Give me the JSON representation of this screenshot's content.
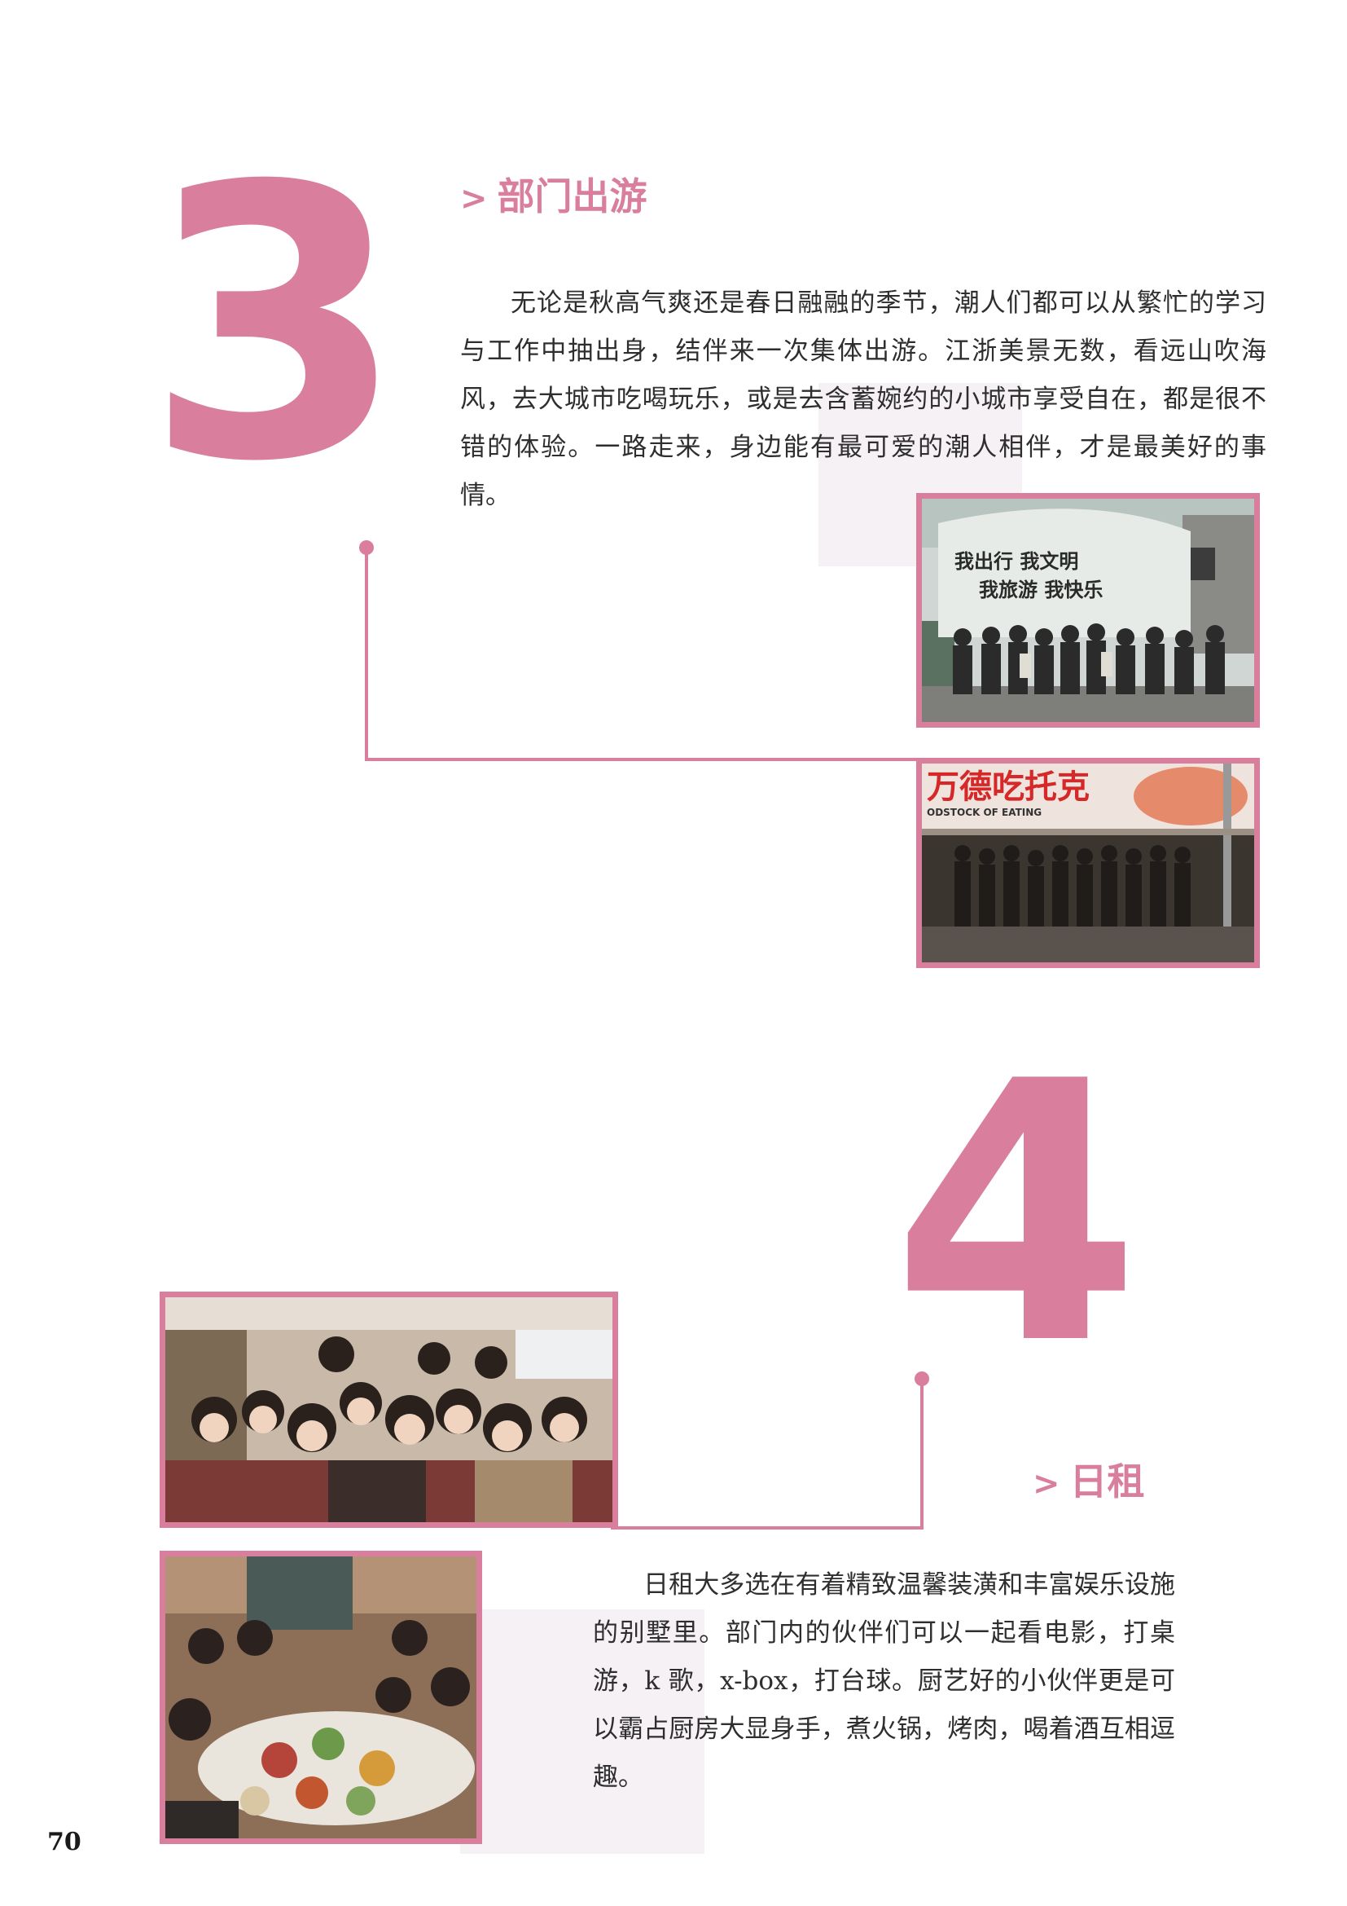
{
  "section3": {
    "number": "3",
    "heading_prefix": ">",
    "heading": "部门出游",
    "body": "无论是秋高气爽还是春日融融的季节，潮人们都可以从繁忙的学习与工作中抽出身，结伴来一次集体出游。江浙美景无数，看远山吹海风，去大城市吃喝玩乐，或是去含蓄婉约的小城市享受自在，都是很不错的体验。一路走来，身边能有最可爱的潮人相伴，才是最美好的事情。",
    "photo1_sign_line1": "我出行 我文明",
    "photo1_sign_line2": "我旅游 我快乐",
    "photo2_banner": "万德吃托克",
    "photo2_banner_sub": "ODSTOCK OF EATING"
  },
  "section4": {
    "number": "4",
    "heading_prefix": ">",
    "heading": "日租",
    "body": "日租大多选在有着精致温馨装潢和丰富娱乐设施的别墅里。部门内的伙伴们可以一起看电影，打桌游，k 歌，x-box，打台球。厨艺好的小伙伴更是可以霸占厨房大显身手，煮火锅，烤肉，喝着酒互相逗趣。"
  },
  "footer": {
    "page_number": "70"
  },
  "colors": {
    "accent": "#d97f9d",
    "pale": "#f6f1f5"
  }
}
